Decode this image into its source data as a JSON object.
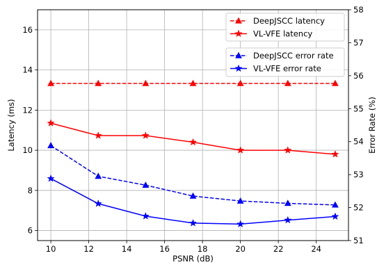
{
  "chart_data": {
    "type": "line",
    "xlabel": "PSNR (dB)",
    "ylabel_left": "Latency (ms)",
    "ylabel_right": "Error Rate (%)",
    "x": [
      10,
      12.5,
      15,
      17.5,
      20,
      22.5,
      25
    ],
    "xlim": [
      9.3,
      25.7
    ],
    "ylim_left": [
      5.5,
      17.0
    ],
    "ylim_right": [
      51,
      58
    ],
    "x_ticks": [
      10,
      12,
      14,
      16,
      18,
      20,
      22,
      24
    ],
    "y_ticks_left": [
      6,
      8,
      10,
      12,
      14,
      16
    ],
    "y_ticks_right": [
      51,
      52,
      53,
      54,
      55,
      56,
      57,
      58
    ],
    "grid": true,
    "latency_series": [
      {
        "name": "DeepJSCC latency",
        "color": "#ff0000",
        "linestyle": "dashed",
        "marker": "triangle",
        "values": [
          13.33,
          13.33,
          13.33,
          13.33,
          13.33,
          13.33,
          13.33
        ]
      },
      {
        "name": "VL-VFE latency",
        "color": "#ff0000",
        "linestyle": "solid",
        "marker": "star",
        "values": [
          11.35,
          10.73,
          10.73,
          10.4,
          10.0,
          10.0,
          9.8
        ]
      }
    ],
    "error_series": [
      {
        "name": "DeepJSCC error rate",
        "color": "#0000ff",
        "linestyle": "dashed",
        "marker": "triangle",
        "values": [
          53.88,
          52.95,
          52.68,
          52.35,
          52.2,
          52.13,
          52.08
        ]
      },
      {
        "name": "VL-VFE error rate",
        "color": "#0000ff",
        "linestyle": "solid",
        "marker": "star",
        "values": [
          52.88,
          52.12,
          51.74,
          51.53,
          51.5,
          51.62,
          51.73
        ]
      }
    ],
    "legends": [
      {
        "position": "top-right",
        "entries": [
          "DeepJSCC latency",
          "VL-VFE latency"
        ]
      },
      {
        "position": "upper-right",
        "entries": [
          "DeepJSCC error rate",
          "VL-VFE error rate"
        ]
      }
    ]
  }
}
